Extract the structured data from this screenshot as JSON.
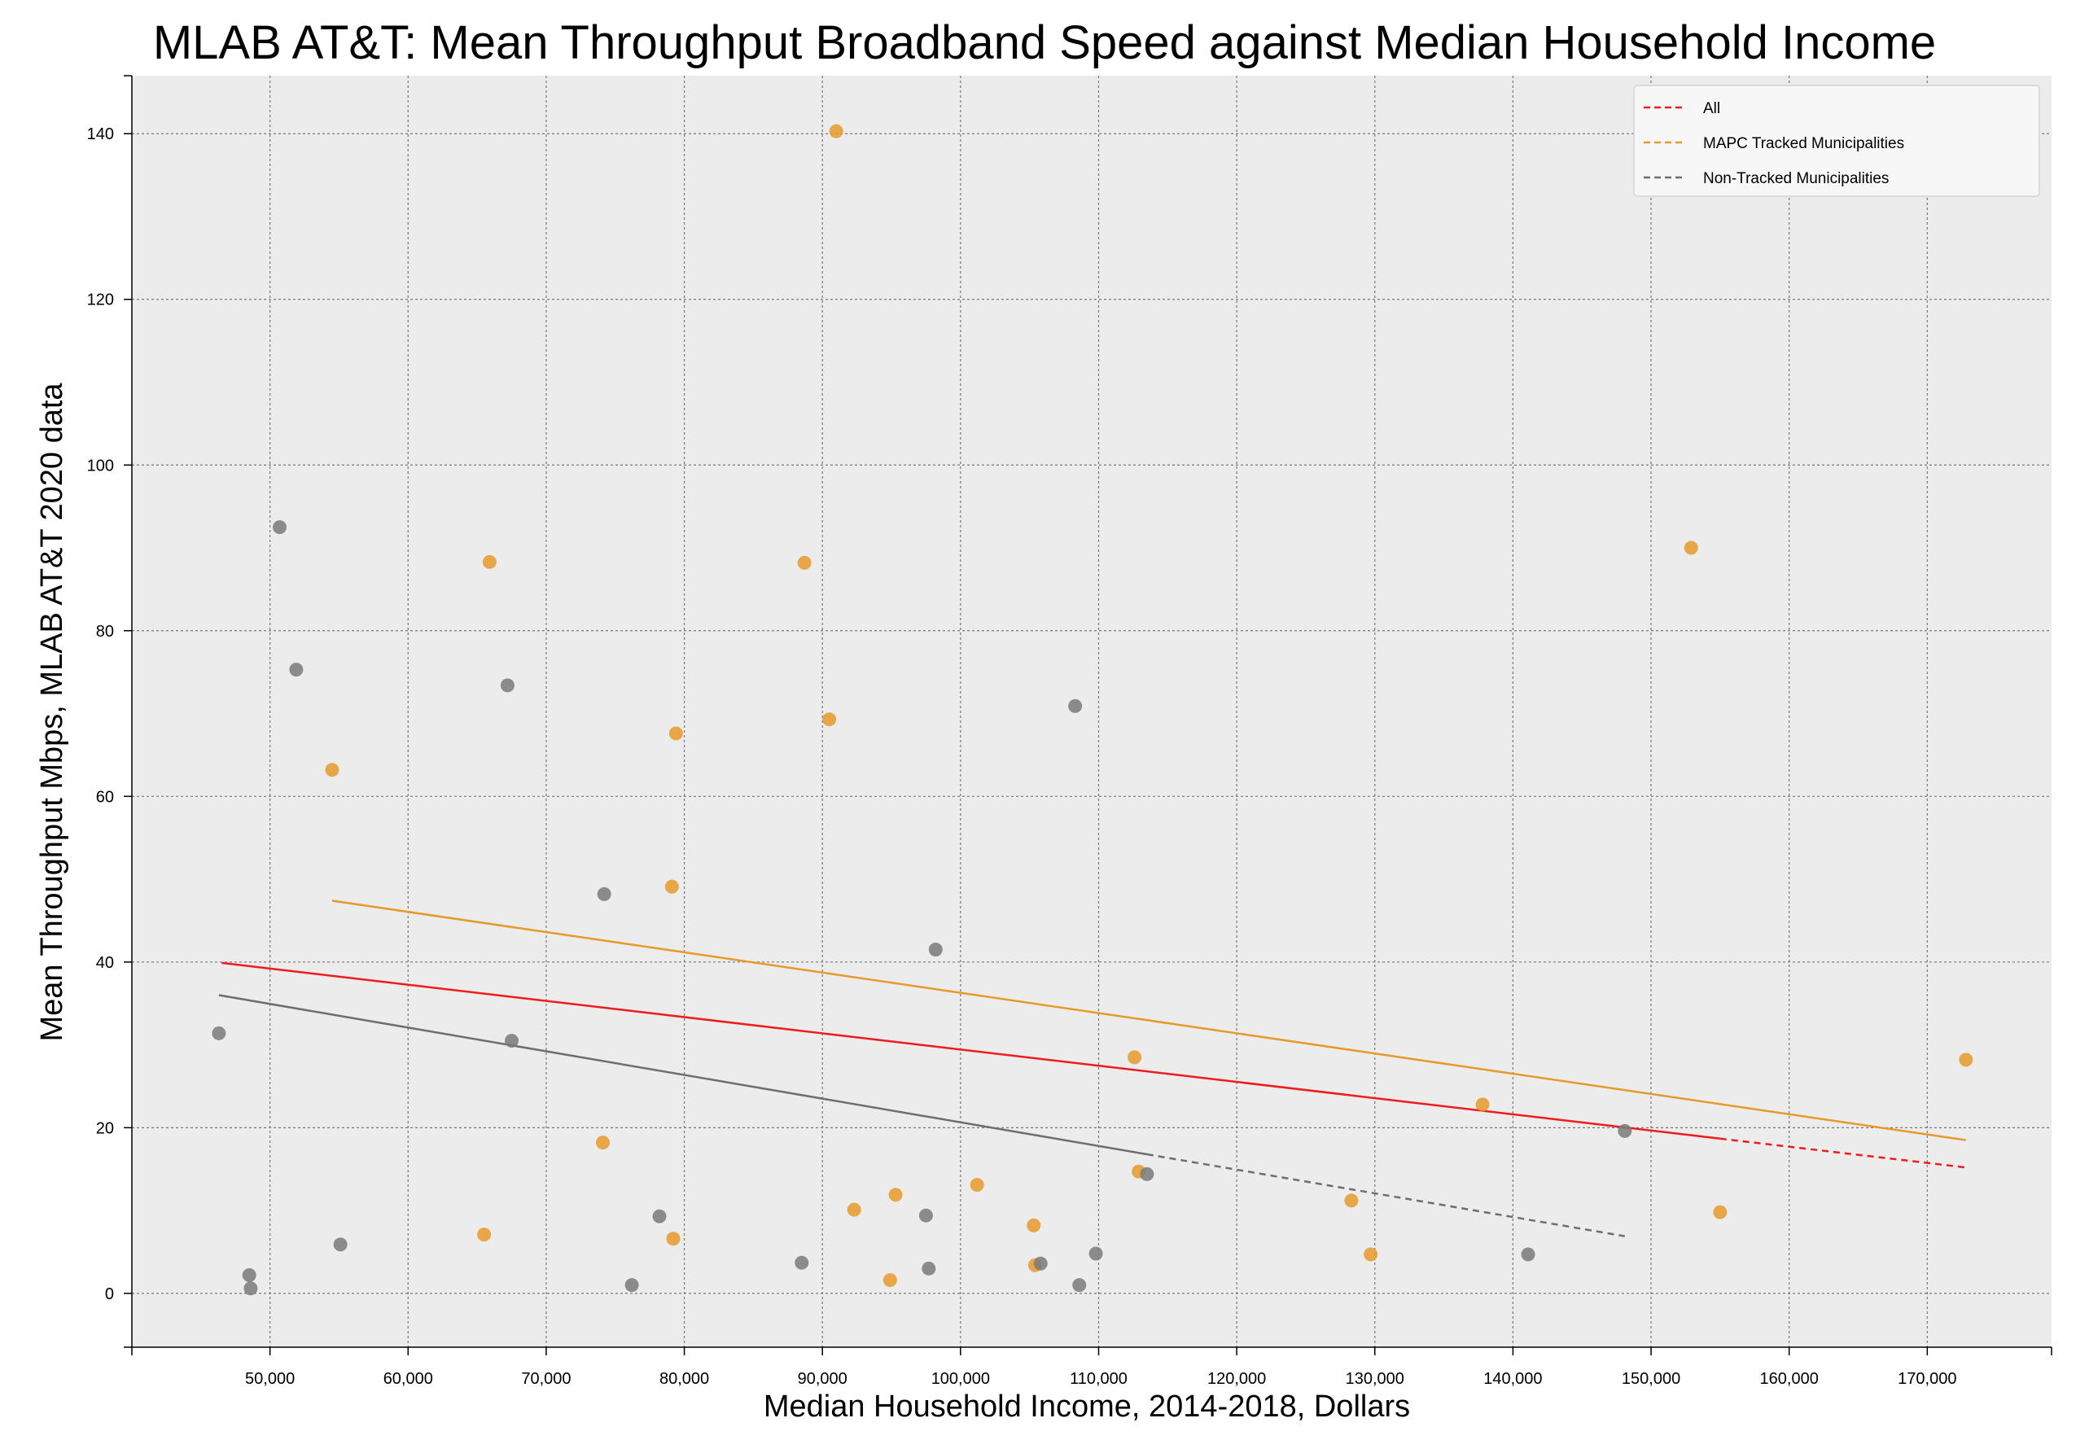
{
  "chart_data": {
    "type": "scatter",
    "title": "MLAB AT&T: Mean Throughput Broadband Speed against Median Household Income",
    "xlabel": "Median Household Income, 2014-2018, Dollars",
    "ylabel": "Mean Throughput Mbps, MLAB AT&T 2020 data",
    "xlim": [
      40000,
      179000
    ],
    "ylim": [
      -6.5,
      147
    ],
    "x_ticks": [
      50000,
      60000,
      70000,
      80000,
      90000,
      100000,
      110000,
      120000,
      130000,
      140000,
      150000,
      160000,
      170000
    ],
    "x_tick_labels": [
      "50,000",
      "60,000",
      "70,000",
      "80,000",
      "90,000",
      "100,000",
      "110,000",
      "120,000",
      "130,000",
      "140,000",
      "150,000",
      "160,000",
      "170,000"
    ],
    "y_ticks": [
      0,
      20,
      40,
      60,
      80,
      100,
      120,
      140
    ],
    "y_tick_labels": [
      "0",
      "20",
      "40",
      "60",
      "80",
      "100",
      "120",
      "140"
    ],
    "grid": true,
    "legend_position": "top-right",
    "series": [
      {
        "name": "MAPC Tracked Municipalities",
        "color": "#e69a2b",
        "points": [
          {
            "x": 54500,
            "y": 63.2
          },
          {
            "x": 65900,
            "y": 88.3
          },
          {
            "x": 65500,
            "y": 7.1
          },
          {
            "x": 74100,
            "y": 18.2
          },
          {
            "x": 79100,
            "y": 49.1
          },
          {
            "x": 79400,
            "y": 67.6
          },
          {
            "x": 79200,
            "y": 6.6
          },
          {
            "x": 88700,
            "y": 88.2
          },
          {
            "x": 91000,
            "y": 140.3
          },
          {
            "x": 90500,
            "y": 69.3
          },
          {
            "x": 92300,
            "y": 10.1
          },
          {
            "x": 95300,
            "y": 11.9
          },
          {
            "x": 94900,
            "y": 1.6
          },
          {
            "x": 101200,
            "y": 13.1
          },
          {
            "x": 105300,
            "y": 8.2
          },
          {
            "x": 105400,
            "y": 3.4
          },
          {
            "x": 112600,
            "y": 28.5
          },
          {
            "x": 112900,
            "y": 14.7
          },
          {
            "x": 128300,
            "y": 11.2
          },
          {
            "x": 129700,
            "y": 4.7
          },
          {
            "x": 137800,
            "y": 22.8
          },
          {
            "x": 152900,
            "y": 90.0
          },
          {
            "x": 155000,
            "y": 9.8
          },
          {
            "x": 172800,
            "y": 28.2
          }
        ]
      },
      {
        "name": "Non-Tracked Municipalities",
        "color": "#7a7a7a",
        "points": [
          {
            "x": 46300,
            "y": 31.4
          },
          {
            "x": 48500,
            "y": 2.2
          },
          {
            "x": 48600,
            "y": 0.6
          },
          {
            "x": 50700,
            "y": 92.5
          },
          {
            "x": 51900,
            "y": 75.3
          },
          {
            "x": 55100,
            "y": 5.9
          },
          {
            "x": 67200,
            "y": 73.4
          },
          {
            "x": 67500,
            "y": 30.5
          },
          {
            "x": 74200,
            "y": 48.2
          },
          {
            "x": 76200,
            "y": 1.0
          },
          {
            "x": 78200,
            "y": 9.3
          },
          {
            "x": 88500,
            "y": 3.7
          },
          {
            "x": 97500,
            "y": 9.4
          },
          {
            "x": 97700,
            "y": 3.0
          },
          {
            "x": 98200,
            "y": 41.5
          },
          {
            "x": 105800,
            "y": 3.6
          },
          {
            "x": 108300,
            "y": 70.9
          },
          {
            "x": 108600,
            "y": 1.0
          },
          {
            "x": 109800,
            "y": 4.8
          },
          {
            "x": 113500,
            "y": 14.4
          },
          {
            "x": 141100,
            "y": 4.7
          },
          {
            "x": 148100,
            "y": 19.6
          }
        ]
      }
    ],
    "trend_lines": [
      {
        "name": "All",
        "color": "#ee1c1c",
        "x": [
          46500,
          172800
        ],
        "y": [
          39.9,
          15.2
        ],
        "solid_until_x": 155000
      },
      {
        "name": "MAPC Tracked Municipalities",
        "color": "#e69a2b",
        "x": [
          54500,
          172800
        ],
        "y": [
          47.4,
          18.5
        ],
        "solid_until_x": 172800
      },
      {
        "name": "Non-Tracked Municipalities",
        "color": "#6e6e6e",
        "x": [
          46300,
          148100
        ],
        "y": [
          36.0,
          6.9
        ],
        "solid_until_x": 113500
      }
    ],
    "legend": [
      {
        "label": "All",
        "color": "#ee1c1c",
        "dash": true
      },
      {
        "label": "MAPC Tracked Municipalities",
        "color": "#e69a2b",
        "dash": true
      },
      {
        "label": "Non-Tracked Municipalities",
        "color": "#6e6e6e",
        "dash": true
      }
    ]
  }
}
